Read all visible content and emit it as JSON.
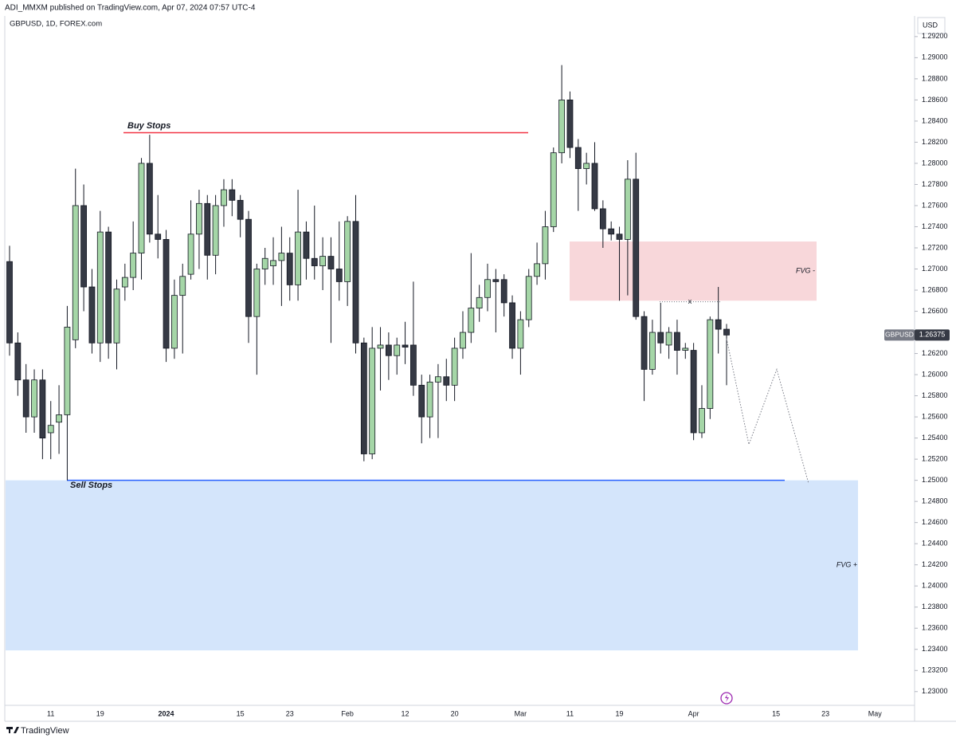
{
  "chart_data": {
    "type": "candlestick",
    "publisher_line": "ADI_MMXM published on TradingView.com, Apr 07, 2024 07:57 UTC-4",
    "title": "GBPUSD, 1D, FOREX.com",
    "currency": "USD",
    "price_tag_symbol": "GBPUSD",
    "footer": "TradingView",
    "up_color": "#a5d6a7",
    "down_color": "#363a45",
    "categories": [
      null,
      null,
      null,
      null,
      null,
      "11",
      null,
      null,
      null,
      null,
      null,
      "19",
      null,
      null,
      null,
      null,
      null,
      null,
      null,
      "2024",
      null,
      null,
      null,
      null,
      null,
      null,
      null,
      null,
      "15",
      null,
      null,
      null,
      null,
      null,
      "23",
      null,
      null,
      null,
      null,
      null,
      null,
      "Feb",
      null,
      null,
      null,
      null,
      null,
      null,
      "12",
      null,
      null,
      null,
      null,
      null,
      "20",
      null,
      null,
      null,
      null,
      null,
      null,
      null,
      "Mar",
      null,
      null,
      null,
      null,
      null,
      "11",
      null,
      null,
      null,
      null,
      null,
      "19",
      null,
      null,
      null,
      null,
      null,
      null,
      null,
      null,
      "Apr",
      null,
      null,
      null,
      null,
      null,
      null,
      null,
      null,
      null,
      "15",
      null,
      null,
      null,
      null,
      null,
      "23",
      null,
      null,
      null,
      null,
      null,
      "May",
      null,
      null,
      null,
      null
    ],
    "open": [
      1.2707,
      1.263,
      1.2595,
      1.256,
      1.2595,
      1.2545,
      1.2555,
      1.2562,
      1.2633,
      1.276,
      1.2683,
      1.263,
      1.2735,
      1.263,
      1.2683,
      1.2692,
      1.2715,
      1.28,
      1.2733,
      1.2728,
      1.2625,
      1.2675,
      1.2695,
      1.2733,
      1.2762,
      1.2713,
      1.276,
      1.2775,
      1.2765,
      1.2747,
      1.2655,
      1.27,
      1.2703,
      1.2708,
      1.2715,
      1.2685,
      1.2735,
      1.271,
      1.2703,
      1.2712,
      1.27,
      1.2688,
      1.2745,
      1.263,
      1.2525,
      1.2625,
      1.2628,
      1.2618,
      1.2628,
      1.2628,
      1.259,
      1.256,
      1.2593,
      1.2598,
      1.259,
      1.2625,
      1.264,
      1.2663,
      1.2673,
      1.269,
      1.269,
      1.2668,
      1.2625,
      1.2652,
      1.2693,
      1.2705,
      1.274,
      1.281,
      1.286,
      1.2815,
      1.2795,
      1.28,
      1.2757,
      1.2738,
      1.2733,
      1.2728,
      1.2785,
      1.2655,
      1.2605,
      1.264,
      1.2628,
      1.264,
      1.2623,
      1.2623,
      1.2545,
      1.2568,
      1.2652,
      1.2643,
      null,
      null,
      null,
      null,
      null,
      null,
      null,
      null,
      null,
      null,
      null,
      null,
      null,
      null,
      null,
      null,
      null,
      null,
      null,
      null,
      null,
      null
    ],
    "high": [
      1.2722,
      1.264,
      1.261,
      1.2605,
      1.2605,
      1.2575,
      1.259,
      1.2665,
      1.2795,
      1.278,
      1.27,
      1.2755,
      1.274,
      1.269,
      1.2705,
      1.2745,
      1.2805,
      1.2827,
      1.277,
      1.2737,
      1.269,
      1.2705,
      1.2765,
      1.2775,
      1.277,
      1.277,
      1.2785,
      1.2785,
      1.277,
      1.2755,
      1.2705,
      1.272,
      1.273,
      1.274,
      1.273,
      1.2775,
      1.2745,
      1.276,
      1.273,
      1.273,
      1.2745,
      1.275,
      1.277,
      1.2635,
      1.2645,
      1.2645,
      1.264,
      1.2635,
      1.265,
      1.2688,
      1.26,
      1.26,
      1.261,
      1.2615,
      1.2635,
      1.266,
      1.2715,
      1.2685,
      1.2705,
      1.27,
      1.2695,
      1.2675,
      1.266,
      1.27,
      1.2725,
      1.2755,
      1.2815,
      1.2893,
      1.2868,
      1.2823,
      1.281,
      1.282,
      1.2765,
      1.2745,
      1.274,
      1.2803,
      1.281,
      1.266,
      1.2652,
      1.2668,
      1.2645,
      1.2652,
      1.263,
      1.263,
      1.259,
      1.2655,
      1.2683,
      1.2648,
      null,
      null,
      null,
      null,
      null,
      null,
      null,
      null,
      null,
      null,
      null,
      null,
      null,
      null,
      null,
      null,
      null,
      null,
      null,
      null,
      null,
      null
    ],
    "low": [
      1.2618,
      1.258,
      1.2545,
      1.2545,
      1.252,
      1.252,
      1.2525,
      1.25,
      1.2625,
      1.266,
      1.262,
      1.2612,
      1.2615,
      1.2605,
      1.267,
      1.268,
      1.269,
      1.2725,
      1.271,
      1.2612,
      1.2615,
      1.262,
      1.269,
      1.27,
      1.269,
      1.2695,
      1.274,
      1.275,
      1.273,
      1.263,
      1.26,
      1.2685,
      1.2685,
      1.2665,
      1.267,
      1.267,
      1.269,
      1.269,
      1.268,
      1.263,
      1.267,
      1.2665,
      1.262,
      1.2518,
      1.252,
      1.2585,
      1.2595,
      1.26,
      1.261,
      1.258,
      1.2535,
      1.254,
      1.254,
      1.2575,
      1.2575,
      1.2615,
      1.263,
      1.265,
      1.266,
      1.264,
      1.2655,
      1.2615,
      1.26,
      1.2645,
      1.2685,
      1.269,
      1.2735,
      1.28,
      1.2805,
      1.2755,
      1.278,
      1.2755,
      1.272,
      1.2727,
      1.267,
      1.2675,
      1.2652,
      1.2575,
      1.26,
      1.262,
      1.2615,
      1.26,
      1.2615,
      1.2538,
      1.254,
      1.2558,
      1.262,
      1.259,
      null,
      null,
      null,
      null,
      null,
      null,
      null,
      null,
      null,
      null,
      null,
      null,
      null,
      null,
      null,
      null,
      null,
      null,
      null,
      null,
      null,
      null
    ],
    "close": [
      1.263,
      1.2595,
      1.256,
      1.2595,
      1.254,
      1.2552,
      1.2562,
      1.2645,
      1.276,
      1.2683,
      1.263,
      1.2735,
      1.263,
      1.2681,
      1.2692,
      1.2715,
      1.28,
      1.2733,
      1.2728,
      1.2625,
      1.2675,
      1.2693,
      1.2733,
      1.2762,
      1.2713,
      1.276,
      1.2775,
      1.2765,
      1.2747,
      1.2655,
      1.27,
      1.271,
      1.2708,
      1.2715,
      1.2685,
      1.2735,
      1.271,
      1.2703,
      1.2712,
      1.27,
      1.2688,
      1.2745,
      1.263,
      1.2525,
      1.2625,
      1.2628,
      1.2618,
      1.2628,
      1.2626,
      1.259,
      1.256,
      1.2593,
      1.2598,
      1.259,
      1.2625,
      1.264,
      1.2663,
      1.2673,
      1.269,
      1.2688,
      1.2668,
      1.2625,
      1.2652,
      1.2693,
      1.2705,
      1.274,
      1.281,
      1.286,
      1.2815,
      1.2795,
      1.28,
      1.2757,
      1.2738,
      1.2733,
      1.2728,
      1.2785,
      1.2655,
      1.2605,
      1.264,
      1.263,
      1.264,
      1.2623,
      1.2625,
      1.2545,
      1.2568,
      1.2652,
      1.2643,
      1.26375,
      null,
      null,
      null,
      null,
      null,
      null,
      null,
      null,
      null,
      null,
      null,
      null,
      null,
      null,
      null,
      null,
      null,
      null,
      null,
      null,
      null,
      null
    ],
    "ylim": [
      1.2287,
      1.2938
    ],
    "yticks": [
      {
        "value": 1.23,
        "label": "1.23000"
      },
      {
        "value": 1.232,
        "label": "1.23200"
      },
      {
        "value": 1.234,
        "label": "1.23400"
      },
      {
        "value": 1.236,
        "label": "1.23600"
      },
      {
        "value": 1.238,
        "label": "1.23800"
      },
      {
        "value": 1.24,
        "label": "1.24000"
      },
      {
        "value": 1.242,
        "label": "1.24200"
      },
      {
        "value": 1.244,
        "label": "1.24400"
      },
      {
        "value": 1.246,
        "label": "1.24600"
      },
      {
        "value": 1.248,
        "label": "1.24800"
      },
      {
        "value": 1.25,
        "label": "1.25000"
      },
      {
        "value": 1.252,
        "label": "1.25200"
      },
      {
        "value": 1.254,
        "label": "1.25400"
      },
      {
        "value": 1.256,
        "label": "1.25600"
      },
      {
        "value": 1.258,
        "label": "1.25800"
      },
      {
        "value": 1.26,
        "label": "1.26000"
      },
      {
        "value": 1.262,
        "label": "1.26200"
      },
      {
        "value": 1.266,
        "label": "1.26600"
      },
      {
        "value": 1.268,
        "label": "1.26800"
      },
      {
        "value": 1.27,
        "label": "1.27000"
      },
      {
        "value": 1.272,
        "label": "1.27200"
      },
      {
        "value": 1.274,
        "label": "1.27400"
      },
      {
        "value": 1.276,
        "label": "1.27600"
      },
      {
        "value": 1.278,
        "label": "1.27800"
      },
      {
        "value": 1.28,
        "label": "1.28000"
      },
      {
        "value": 1.282,
        "label": "1.28200"
      },
      {
        "value": 1.284,
        "label": "1.28400"
      },
      {
        "value": 1.286,
        "label": "1.28600"
      },
      {
        "value": 1.288,
        "label": "1.28800"
      },
      {
        "value": 1.29,
        "label": "1.29000"
      },
      {
        "value": 1.292,
        "label": "1.29200"
      }
    ],
    "levels": [
      {
        "text": "Buy Stops",
        "price": 1.2829,
        "color": "#f23645"
      },
      {
        "text": "Sell Stops",
        "price": 1.25,
        "color": "#2962ff"
      },
      {
        "text": "x",
        "price": 1.2669,
        "color": "#787b86"
      }
    ],
    "zones": [
      {
        "label": "FVG -",
        "top": 1.2726,
        "bottom": 1.267,
        "color": "#f8d7da",
        "label_color": "#f23645"
      },
      {
        "label": "FVG +",
        "top": 1.25,
        "bottom": 1.2339,
        "color": "#d4e5fb",
        "label_color": "#2962ff"
      }
    ],
    "projection": [
      1.2634,
      1.2534,
      1.2605,
      1.2497
    ]
  }
}
